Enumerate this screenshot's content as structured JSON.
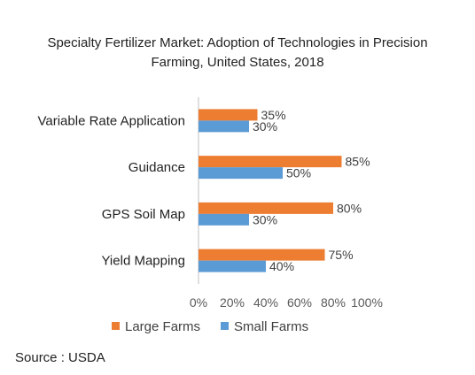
{
  "chart_data": {
    "type": "bar",
    "orientation": "horizontal",
    "title": "Specialty Fertilizer Market: Adoption of Technologies in Precision Farming, United States, 2018",
    "title_lines": [
      "Specialty Fertilizer Market: Adoption of Technologies in Precision",
      "Farming, United States, 2018"
    ],
    "categories": [
      "Variable Rate Application",
      "Guidance",
      "GPS Soil Map",
      "Yield Mapping"
    ],
    "series": [
      {
        "name": "Large Farms",
        "color": "#ED7D31",
        "values": [
          35,
          85,
          80,
          75
        ]
      },
      {
        "name": "Small Farms",
        "color": "#5B9BD5",
        "values": [
          30,
          50,
          30,
          40
        ]
      }
    ],
    "xlim": [
      0,
      100
    ],
    "xticks": [
      "0%",
      "20%",
      "40%",
      "60%",
      "80%",
      "100%"
    ],
    "value_suffix": "%",
    "xlabel": "",
    "ylabel": "",
    "grid": false,
    "legend_position": "bottom"
  },
  "source": "Source : USDA"
}
